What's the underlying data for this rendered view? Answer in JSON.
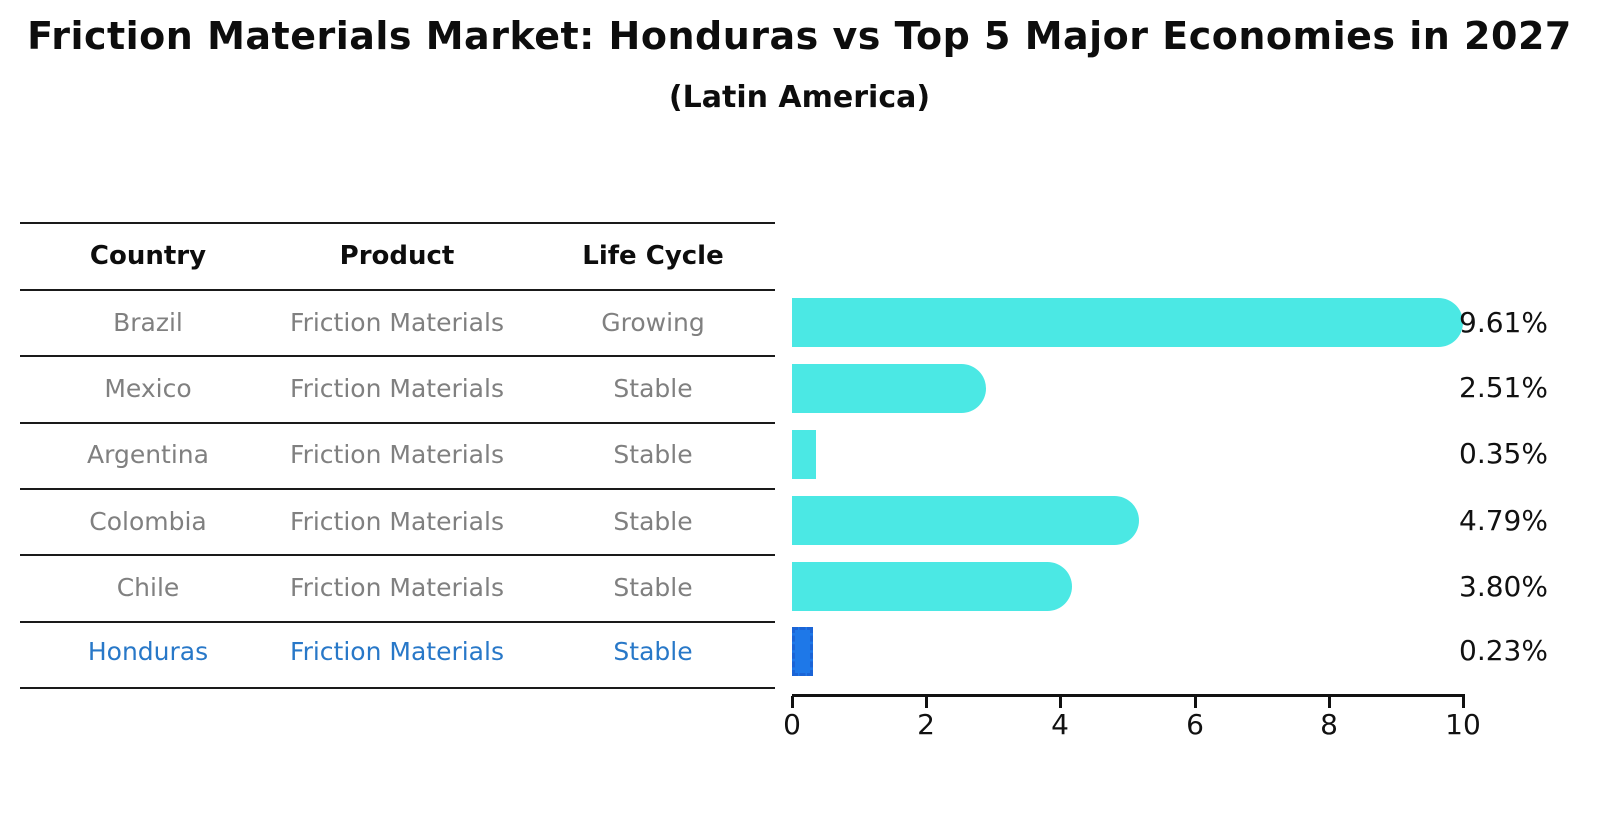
{
  "title": "Friction Materials Market: Honduras vs Top 5 Major Economies in 2027",
  "subtitle": "(Latin America)",
  "table": {
    "headers": [
      "Country",
      "Product",
      "Life Cycle"
    ],
    "rows": [
      {
        "country": "Brazil",
        "product": "Friction Materials",
        "life_cycle": "Growing",
        "highlight": false
      },
      {
        "country": "Mexico",
        "product": "Friction Materials",
        "life_cycle": "Stable",
        "highlight": false
      },
      {
        "country": "Argentina",
        "product": "Friction Materials",
        "life_cycle": "Stable",
        "highlight": false
      },
      {
        "country": "Colombia",
        "product": "Friction Materials",
        "life_cycle": "Stable",
        "highlight": false
      },
      {
        "country": "Chile",
        "product": "Friction Materials",
        "life_cycle": "Stable",
        "highlight": false
      },
      {
        "country": "Honduras",
        "product": "Friction Materials",
        "life_cycle": "Stable",
        "highlight": true
      }
    ]
  },
  "chart_data": {
    "type": "bar",
    "orientation": "horizontal",
    "categories": [
      "Brazil",
      "Mexico",
      "Argentina",
      "Colombia",
      "Chile",
      "Honduras"
    ],
    "values": [
      9.61,
      2.51,
      0.35,
      4.79,
      3.8,
      0.23
    ],
    "labels": [
      "9.61%",
      "2.51%",
      "0.35%",
      "4.79%",
      "3.80%",
      "0.23%"
    ],
    "x_ticks": [
      "0",
      "2",
      "4",
      "6",
      "8",
      "10"
    ],
    "xlim": [
      0,
      10
    ],
    "grid": false,
    "legend": false,
    "highlight_index": 5,
    "bar_color": "#4BE8E4",
    "highlight_bar_color": "#1E78E8",
    "highlight_bar_edge_color": "#1B64D6",
    "highlight_text_color": "#2878C8",
    "body_text_color": "#808080",
    "line_color": "#1a1a1a"
  }
}
